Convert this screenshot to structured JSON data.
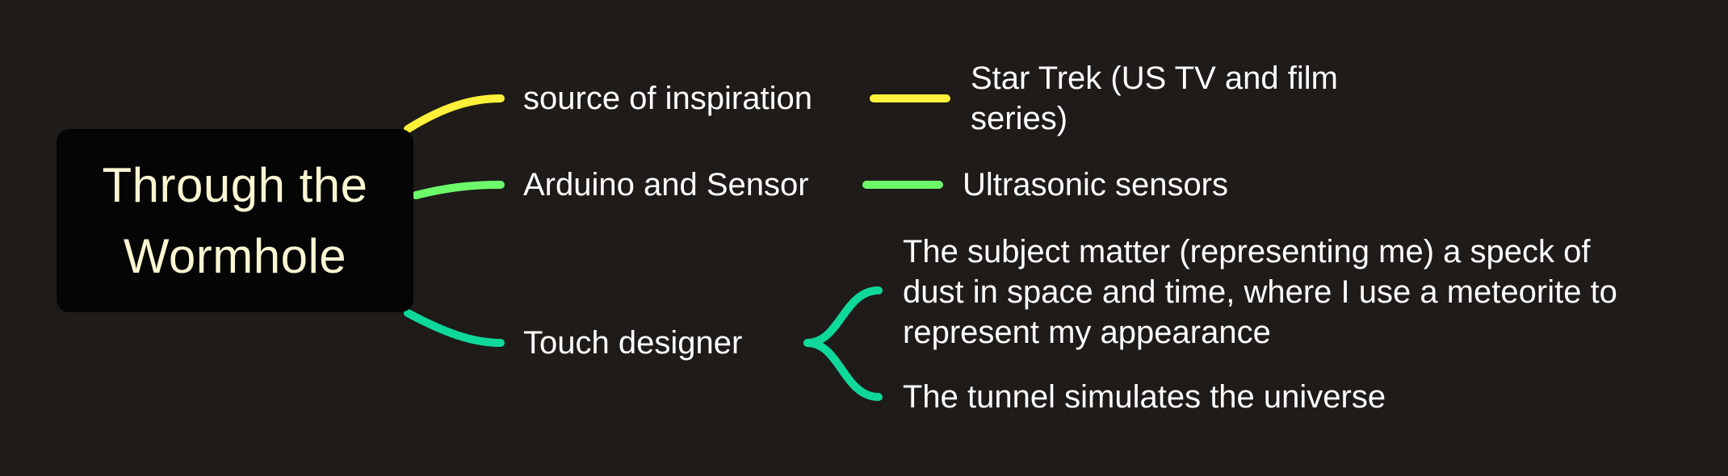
{
  "root": {
    "title": "Through the\nWormhole"
  },
  "branches": [
    {
      "label": "source of inspiration",
      "color": "#fff13a",
      "children": [
        {
          "label": "Star Trek (US TV and film series)"
        }
      ]
    },
    {
      "label": "Arduino and Sensor",
      "color": "#6cf96a",
      "children": [
        {
          "label": "Ultrasonic sensors"
        }
      ]
    },
    {
      "label": "Touch designer",
      "color": "#0fd99a",
      "children": [
        {
          "label": "The subject matter (representing me) a speck of dust in space and time, where I use a meteorite to represent my appearance"
        },
        {
          "label": "The tunnel simulates the universe"
        }
      ]
    }
  ]
}
